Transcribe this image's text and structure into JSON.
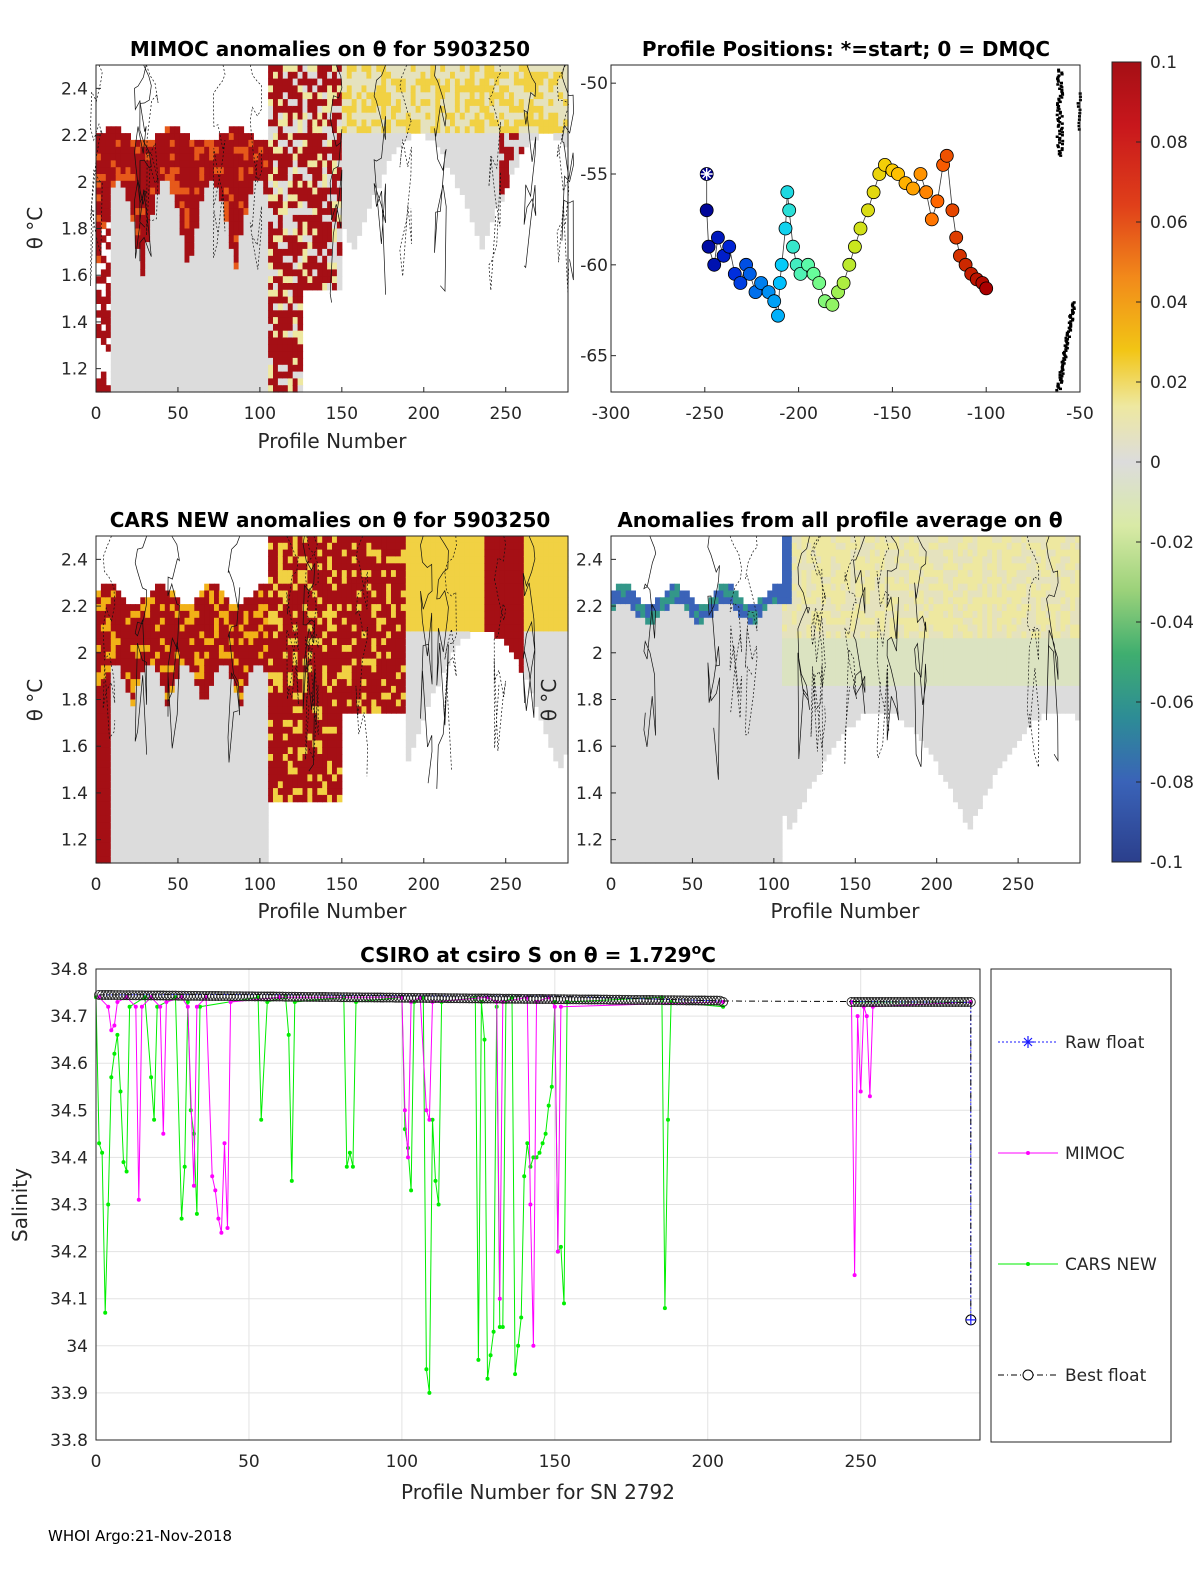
{
  "footer": "WHOI Argo:21-Nov-2018",
  "colors": {
    "positive_anomaly": "#c8171c",
    "neutral": "#dcdcdc",
    "raw_float": "#1a1aff",
    "mimoc": "#ff00ff",
    "cars_new": "#00ee00",
    "best_float": "#000000"
  },
  "chart_data": [
    {
      "id": "mimoc",
      "type": "heatmap",
      "title": "MIMOC anomalies on θ  for 5903250",
      "xlabel": "Profile Number",
      "ylabel": "θ °C",
      "xlim": [
        0,
        288
      ],
      "ylim": [
        1.1,
        2.5
      ],
      "xticks": [
        "0",
        "50",
        "100",
        "150",
        "200",
        "250"
      ],
      "yticks": [
        "1.2",
        "1.4",
        "1.6",
        "1.8",
        "2",
        "2.2",
        "2.4"
      ],
      "zones": [
        {
          "x": [
            0,
            100
          ],
          "ytop": 2.2,
          "value": 0.1
        },
        {
          "x": [
            100,
            105
          ],
          "ytop": 2.2,
          "value": 0.1
        },
        {
          "x": [
            105,
            125
          ],
          "ytop": 2.5,
          "value": 0.1
        },
        {
          "x": [
            125,
            150
          ],
          "ytop": 2.5,
          "value": 0.1
        },
        {
          "x": [
            150,
            250
          ],
          "ytop": 2.5,
          "value": 0.02
        },
        {
          "x": [
            250,
            288
          ],
          "ytop": 2.5,
          "value": 0.04
        }
      ]
    },
    {
      "id": "positions",
      "type": "scatter",
      "title": "Profile Positions: *=start; 0 = DMQC",
      "xlim": [
        -300,
        -50
      ],
      "ylim": [
        -67,
        -49
      ],
      "xticks": [
        "-300",
        "-250",
        "-200",
        "-150",
        "-100",
        "-50"
      ],
      "yticks": [
        "-50",
        "-55",
        "-60",
        "-65"
      ],
      "start": [
        -249,
        -55
      ],
      "track": [
        [
          -249,
          -55
        ],
        [
          -249,
          -57
        ],
        [
          -248,
          -59
        ],
        [
          -245,
          -60
        ],
        [
          -243,
          -58.5
        ],
        [
          -240,
          -59.5
        ],
        [
          -237,
          -59
        ],
        [
          -234,
          -60.5
        ],
        [
          -231,
          -61
        ],
        [
          -228,
          -60
        ],
        [
          -226,
          -60.5
        ],
        [
          -223,
          -61.5
        ],
        [
          -220,
          -61
        ],
        [
          -216,
          -61.5
        ],
        [
          -213,
          -62
        ],
        [
          -211,
          -62.8
        ],
        [
          -210,
          -61
        ],
        [
          -209,
          -60
        ],
        [
          -207,
          -58
        ],
        [
          -206,
          -56
        ],
        [
          -205,
          -57
        ],
        [
          -203,
          -59
        ],
        [
          -201,
          -60
        ],
        [
          -199,
          -60.5
        ],
        [
          -195,
          -60
        ],
        [
          -192,
          -60.5
        ],
        [
          -189,
          -61
        ],
        [
          -186,
          -62
        ],
        [
          -182,
          -62.2
        ],
        [
          -179,
          -61.5
        ],
        [
          -176,
          -61
        ],
        [
          -173,
          -60
        ],
        [
          -170,
          -59
        ],
        [
          -167,
          -58
        ],
        [
          -163,
          -57
        ],
        [
          -160,
          -56
        ],
        [
          -157,
          -55
        ],
        [
          -154,
          -54.5
        ],
        [
          -150,
          -54.8
        ],
        [
          -147,
          -55
        ],
        [
          -143,
          -55.5
        ],
        [
          -139,
          -55.8
        ],
        [
          -135,
          -55
        ],
        [
          -132,
          -56
        ],
        [
          -129,
          -57.5
        ],
        [
          -126,
          -56.5
        ],
        [
          -123,
          -54.5
        ],
        [
          -121,
          -54
        ],
        [
          -118,
          -57
        ],
        [
          -116,
          -58.5
        ],
        [
          -114,
          -59.5
        ],
        [
          -111,
          -60
        ],
        [
          -108,
          -60.5
        ],
        [
          -105,
          -60.8
        ],
        [
          -102,
          -61
        ],
        [
          -100,
          -61.3
        ]
      ],
      "land_note": "coastline",
      "colorbar": {
        "ticks": [
          "0.1",
          "0.08",
          "0.06",
          "0.04",
          "0.02",
          "0",
          "-0.02",
          "-0.04",
          "-0.06",
          "-0.08",
          "-0.1"
        ]
      }
    },
    {
      "id": "cars",
      "type": "heatmap",
      "title": "CARS NEW anomalies on θ for 5903250",
      "xlabel": "Profile Number",
      "ylabel": "θ °C",
      "xlim": [
        0,
        288
      ],
      "ylim": [
        1.1,
        2.5
      ],
      "xticks": [
        "0",
        "50",
        "100",
        "150",
        "200",
        "250"
      ],
      "yticks": [
        "1.2",
        "1.4",
        "1.6",
        "1.8",
        "2",
        "2.2",
        "2.4"
      ]
    },
    {
      "id": "allavg",
      "type": "heatmap",
      "title": "Anomalies from all profile average on θ",
      "xlabel": "Profile Number",
      "ylabel": "θ °C",
      "xlim": [
        0,
        288
      ],
      "ylim": [
        1.1,
        2.5
      ],
      "xticks": [
        "0",
        "50",
        "100",
        "150",
        "200",
        "250"
      ],
      "yticks": [
        "1.2",
        "1.4",
        "1.6",
        "1.8",
        "2",
        "2.2",
        "2.4"
      ]
    },
    {
      "id": "csiro",
      "type": "line",
      "title_prefix": "CSIRO at csiro S on θ = 1.729",
      "title_sup": "o",
      "title_suffix": "C",
      "xlabel": "Profile Number for SN 2792",
      "ylabel": "Salinity",
      "xlim": [
        0,
        289
      ],
      "ylim": [
        33.8,
        34.8
      ],
      "xticks": [
        "0",
        "50",
        "100",
        "150",
        "200",
        "250"
      ],
      "yticks": [
        "33.8",
        "33.9",
        "34",
        "34.1",
        "34.2",
        "34.3",
        "34.4",
        "34.5",
        "34.6",
        "34.7",
        "34.8"
      ],
      "legend": [
        "Raw float",
        "MIMOC",
        "CARS NEW",
        "Best float"
      ],
      "series": [
        {
          "name": "Raw float",
          "segments": [
            [
              [
                1,
                34.745
              ],
              [
                50,
                34.746
              ],
              [
                100,
                34.743
              ],
              [
                150,
                34.742
              ],
              [
                205,
                34.732
              ]
            ],
            [
              [
                247,
                34.731
              ],
              [
                270,
                34.73
              ],
              [
                286,
                34.729
              ],
              [
                286,
                34.055
              ]
            ]
          ]
        },
        {
          "name": "MIMOC",
          "segments": [
            [
              [
                1,
                34.74
              ],
              [
                4,
                34.72
              ],
              [
                5,
                34.67
              ],
              [
                6,
                34.68
              ],
              [
                7,
                34.73
              ],
              [
                10,
                34.74
              ],
              [
                13,
                34.72
              ],
              [
                14,
                34.31
              ],
              [
                15,
                34.72
              ],
              [
                18,
                34.74
              ],
              [
                21,
                34.72
              ],
              [
                22,
                34.45
              ],
              [
                23,
                34.73
              ],
              [
                28,
                34.74
              ],
              [
                30,
                34.72
              ],
              [
                32,
                34.34
              ],
              [
                33,
                34.72
              ],
              [
                36,
                34.74
              ],
              [
                38,
                34.36
              ],
              [
                39,
                34.33
              ],
              [
                40,
                34.27
              ],
              [
                41,
                34.24
              ],
              [
                42,
                34.43
              ],
              [
                43,
                34.25
              ],
              [
                44,
                34.73
              ],
              [
                60,
                34.74
              ],
              [
                100,
                34.74
              ],
              [
                101,
                34.5
              ],
              [
                102,
                34.4
              ],
              [
                103,
                34.73
              ],
              [
                106,
                34.74
              ],
              [
                108,
                34.5
              ],
              [
                109,
                34.48
              ],
              [
                110,
                34.73
              ],
              [
                128,
                34.74
              ],
              [
                131,
                34.73
              ],
              [
                132,
                34.1
              ],
              [
                133,
                34.73
              ],
              [
                141,
                34.74
              ],
              [
                142,
                34.3
              ],
              [
                143,
                34.0
              ],
              [
                144,
                34.73
              ],
              [
                148,
                34.74
              ],
              [
                150,
                34.72
              ],
              [
                151,
                34.2
              ],
              [
                152,
                34.72
              ],
              [
                205,
                34.73
              ]
            ],
            [
              [
                247,
                34.73
              ],
              [
                248,
                34.15
              ],
              [
                249,
                34.7
              ],
              [
                250,
                34.54
              ],
              [
                251,
                34.72
              ],
              [
                252,
                34.7
              ],
              [
                253,
                34.53
              ],
              [
                254,
                34.72
              ],
              [
                286,
                34.73
              ]
            ]
          ]
        },
        {
          "name": "CARS NEW",
          "segments": [
            [
              [
                0,
                34.74
              ],
              [
                1,
                34.43
              ],
              [
                2,
                34.41
              ],
              [
                3,
                34.07
              ],
              [
                4,
                34.3
              ],
              [
                5,
                34.57
              ],
              [
                6,
                34.62
              ],
              [
                7,
                34.66
              ],
              [
                8,
                34.54
              ],
              [
                9,
                34.39
              ],
              [
                10,
                34.37
              ],
              [
                11,
                34.72
              ],
              [
                16,
                34.74
              ],
              [
                18,
                34.57
              ],
              [
                19,
                34.48
              ],
              [
                20,
                34.72
              ],
              [
                26,
                34.74
              ],
              [
                28,
                34.27
              ],
              [
                29,
                34.38
              ],
              [
                30,
                34.73
              ],
              [
                31,
                34.5
              ],
              [
                32,
                34.45
              ],
              [
                33,
                34.28
              ],
              [
                34,
                34.72
              ],
              [
                53,
                34.74
              ],
              [
                54,
                34.48
              ],
              [
                56,
                34.73
              ],
              [
                62,
                34.74
              ],
              [
                63,
                34.66
              ],
              [
                64,
                34.35
              ],
              [
                65,
                34.73
              ],
              [
                81,
                34.74
              ],
              [
                82,
                34.38
              ],
              [
                83,
                34.41
              ],
              [
                84,
                34.38
              ],
              [
                85,
                34.73
              ],
              [
                100,
                34.74
              ],
              [
                101,
                34.46
              ],
              [
                102,
                34.42
              ],
              [
                103,
                34.33
              ],
              [
                104,
                34.73
              ],
              [
                107,
                34.74
              ],
              [
                108,
                33.95
              ],
              [
                109,
                33.9
              ],
              [
                110,
                34.48
              ],
              [
                111,
                34.35
              ],
              [
                112,
                34.3
              ],
              [
                113,
                34.73
              ],
              [
                124,
                34.74
              ],
              [
                125,
                33.97
              ],
              [
                126,
                34.73
              ],
              [
                127,
                34.65
              ],
              [
                128,
                33.93
              ],
              [
                129,
                33.98
              ],
              [
                130,
                34.03
              ],
              [
                131,
                34.72
              ],
              [
                132,
                34.04
              ],
              [
                133,
                34.04
              ],
              [
                134,
                34.73
              ],
              [
                136,
                34.74
              ],
              [
                137,
                33.94
              ],
              [
                138,
                34.0
              ],
              [
                139,
                34.06
              ],
              [
                140,
                34.36
              ],
              [
                141,
                34.43
              ],
              [
                142,
                34.38
              ],
              [
                143,
                34.4
              ],
              [
                144,
                34.4
              ],
              [
                145,
                34.41
              ],
              [
                146,
                34.43
              ],
              [
                147,
                34.45
              ],
              [
                148,
                34.51
              ],
              [
                149,
                34.55
              ],
              [
                150,
                34.73
              ],
              [
                151,
                34.2
              ],
              [
                152,
                34.21
              ],
              [
                153,
                34.09
              ],
              [
                154,
                34.73
              ],
              [
                185,
                34.74
              ],
              [
                186,
                34.08
              ],
              [
                187,
                34.48
              ],
              [
                188,
                34.73
              ],
              [
                205,
                34.72
              ]
            ],
            [
              [
                247,
                34.73
              ],
              [
                286,
                34.73
              ]
            ]
          ]
        },
        {
          "name": "Best float",
          "segments": [
            [
              [
                1,
                34.745
              ],
              [
                50,
                34.746
              ],
              [
                100,
                34.743
              ],
              [
                150,
                34.742
              ],
              [
                205,
                34.732
              ],
              [
                247,
                34.731
              ],
              [
                286,
                34.729
              ],
              [
                286,
                34.055
              ]
            ]
          ]
        }
      ]
    }
  ]
}
